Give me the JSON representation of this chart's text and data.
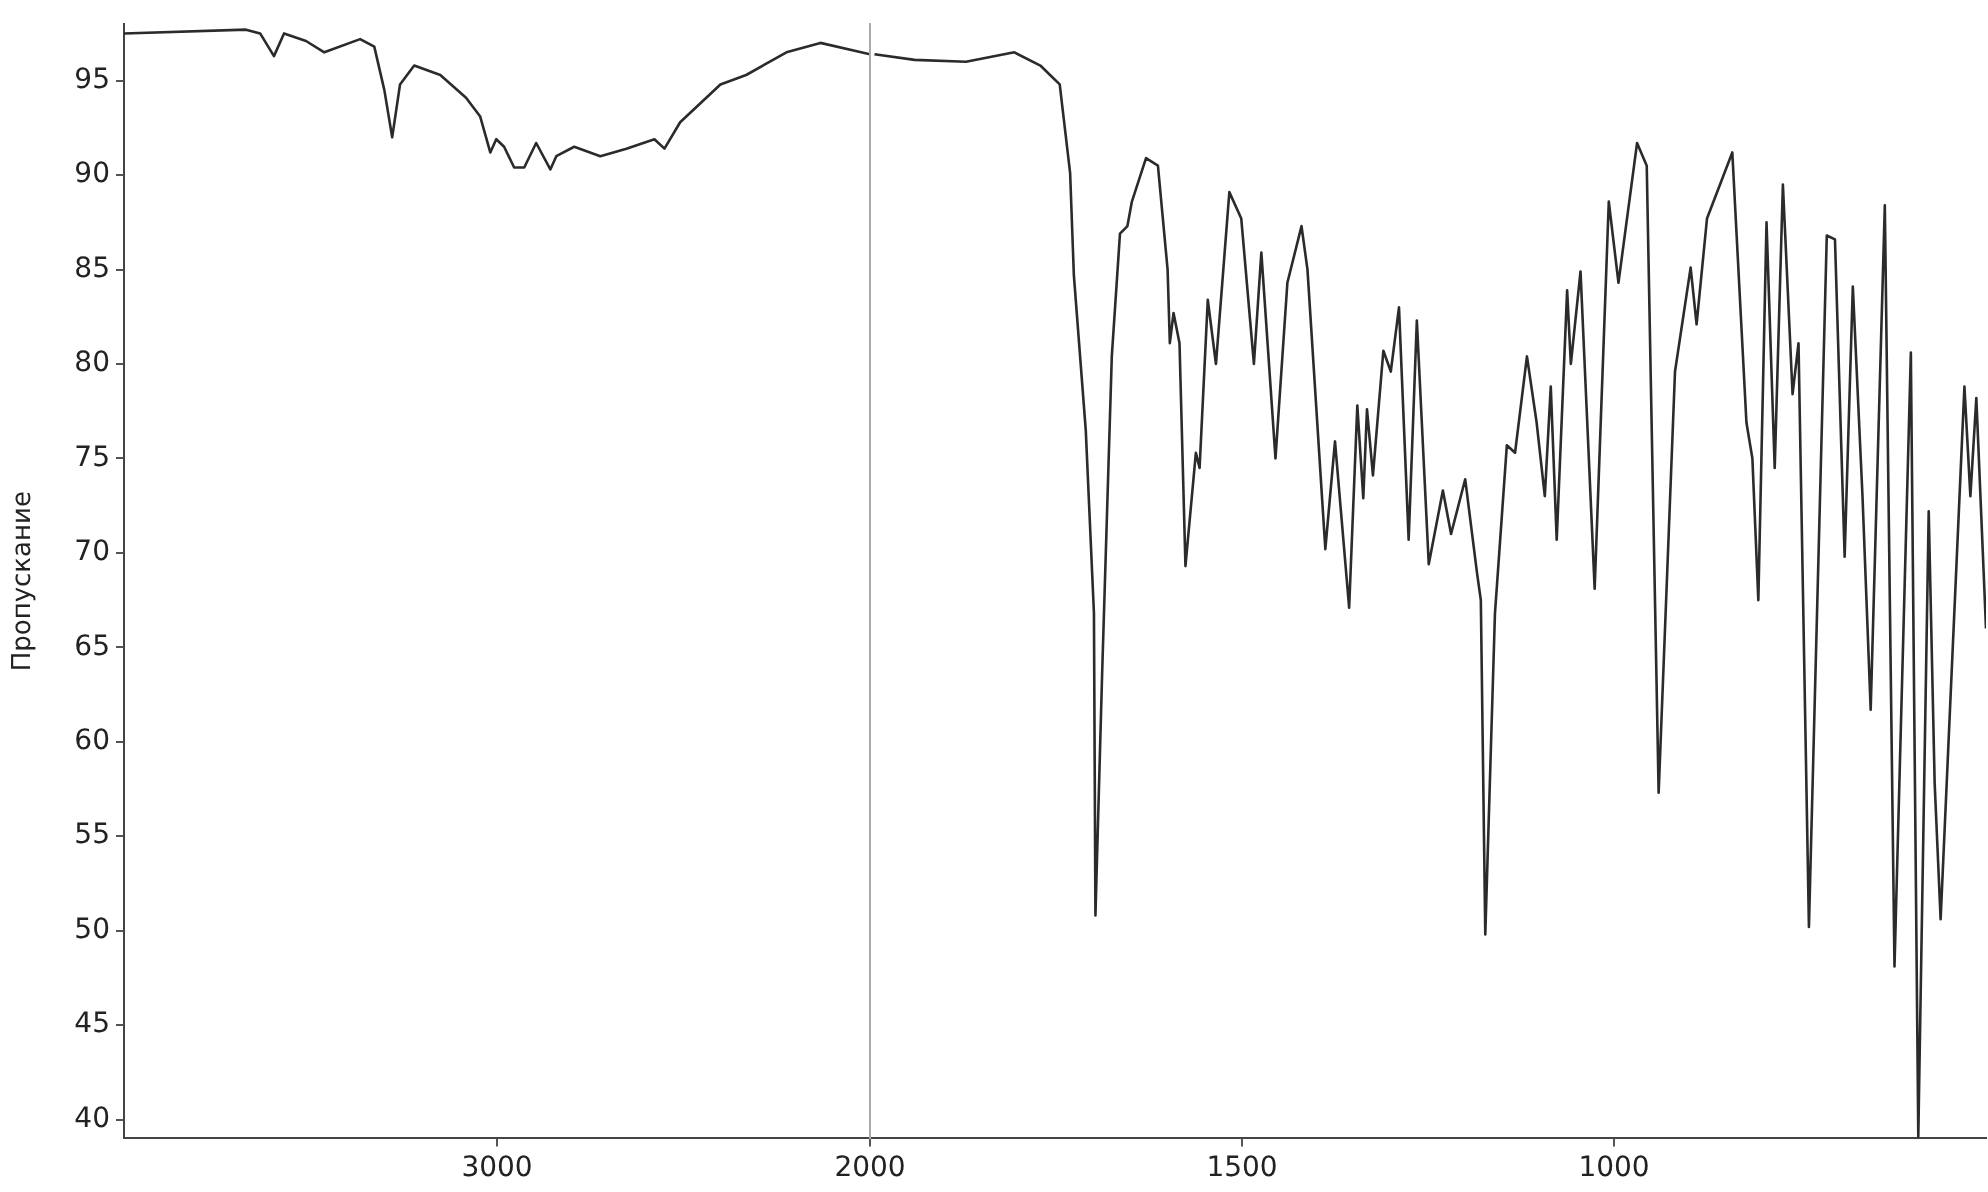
{
  "chart_data": [
    {
      "type": "line",
      "ylabel": "Пропускание",
      "xlim": [
        4000,
        2000
      ],
      "xticks": [
        3000,
        2000
      ],
      "ylim": [
        39,
        98
      ],
      "yticks": [
        40,
        45,
        50,
        55,
        60,
        65,
        70,
        75,
        80,
        85,
        90,
        95
      ],
      "grid": false,
      "legend": false,
      "marker": "none",
      "line_style": "solid",
      "series": [
        {
          "color": "#2b2b2b",
          "x": [
            4000,
            3673,
            3635,
            3598,
            3571,
            3512,
            3463,
            3367,
            3329,
            3302,
            3281,
            3260,
            3222,
            3152,
            3083,
            3045,
            3018,
            3002,
            2981,
            2954,
            2927,
            2895,
            2857,
            2841,
            2793,
            2723,
            2653,
            2578,
            2551,
            2509,
            2401,
            2332,
            2224,
            2133,
            2000
          ],
          "values": [
            97.5,
            97.7,
            97.5,
            96.3,
            97.5,
            97.1,
            96.5,
            97.2,
            96.8,
            94.5,
            92.0,
            94.8,
            95.8,
            95.3,
            94.1,
            93.1,
            91.2,
            91.9,
            91.5,
            90.4,
            90.4,
            91.7,
            90.3,
            91.0,
            91.5,
            91.0,
            91.4,
            91.9,
            91.4,
            92.8,
            94.8,
            95.3,
            96.5,
            97.0,
            96.4
          ]
        }
      ]
    },
    {
      "type": "line",
      "xlim": [
        2000,
        500
      ],
      "xticks": [
        1500,
        1000
      ],
      "ylim": [
        39,
        98
      ],
      "yticks": [
        40,
        45,
        50,
        55,
        60,
        65,
        70,
        75,
        80,
        85,
        90,
        95
      ],
      "tick_labels": "x",
      "grid": false,
      "legend": false,
      "marker": "none",
      "line_style": "solid",
      "series": [
        {
          "color": "#2b2b2b",
          "x": [
            1994,
            1940,
            1871,
            1806,
            1771,
            1758,
            1745,
            1731,
            1726,
            1710,
            1699,
            1697,
            1688,
            1675,
            1664,
            1654,
            1648,
            1629,
            1613,
            1600,
            1597,
            1592,
            1584,
            1576,
            1562,
            1557,
            1546,
            1535,
            1517,
            1501,
            1484,
            1474,
            1455,
            1439,
            1420,
            1412,
            1388,
            1375,
            1356,
            1345,
            1337,
            1332,
            1324,
            1310,
            1300,
            1289,
            1276,
            1265,
            1249,
            1230,
            1219,
            1200,
            1184,
            1179,
            1173,
            1160,
            1144,
            1133,
            1117,
            1104,
            1093,
            1085,
            1077,
            1063,
            1058,
            1045,
            1026,
            1007,
            994,
            969,
            956,
            940,
            918,
            897,
            889,
            875,
            841,
            822,
            814,
            806,
            795,
            784,
            773,
            760,
            752,
            738,
            714,
            703,
            690,
            679,
            666,
            655,
            636,
            623,
            601,
            591,
            577,
            569,
            561,
            529,
            521,
            513,
            500
          ],
          "values": [
            96.4,
            96.1,
            96.0,
            96.5,
            95.8,
            95.3,
            94.8,
            90.1,
            84.7,
            76.5,
            66.8,
            50.8,
            63.6,
            80.4,
            86.9,
            87.3,
            88.6,
            90.9,
            90.5,
            85.0,
            81.1,
            82.7,
            81.1,
            69.3,
            75.3,
            74.5,
            83.4,
            80.0,
            89.1,
            87.7,
            80.0,
            85.9,
            75.0,
            84.3,
            87.3,
            85.0,
            70.2,
            75.9,
            67.1,
            77.8,
            72.9,
            77.6,
            74.1,
            80.7,
            79.6,
            83.0,
            70.7,
            82.3,
            69.4,
            73.3,
            71.0,
            73.9,
            68.9,
            67.5,
            49.8,
            66.8,
            75.7,
            75.3,
            80.4,
            76.9,
            73.0,
            78.8,
            70.7,
            83.9,
            80.0,
            84.9,
            68.1,
            88.6,
            84.3,
            91.7,
            90.5,
            57.3,
            79.6,
            85.1,
            82.1,
            87.7,
            91.2,
            76.9,
            75.0,
            67.5,
            87.5,
            74.5,
            89.5,
            78.4,
            81.1,
            50.2,
            86.8,
            86.6,
            69.8,
            84.1,
            73.0,
            61.7,
            88.4,
            48.1,
            80.6,
            39.1,
            72.2,
            57.8,
            50.6,
            78.8,
            73.0,
            78.2,
            66.0
          ]
        }
      ]
    }
  ]
}
